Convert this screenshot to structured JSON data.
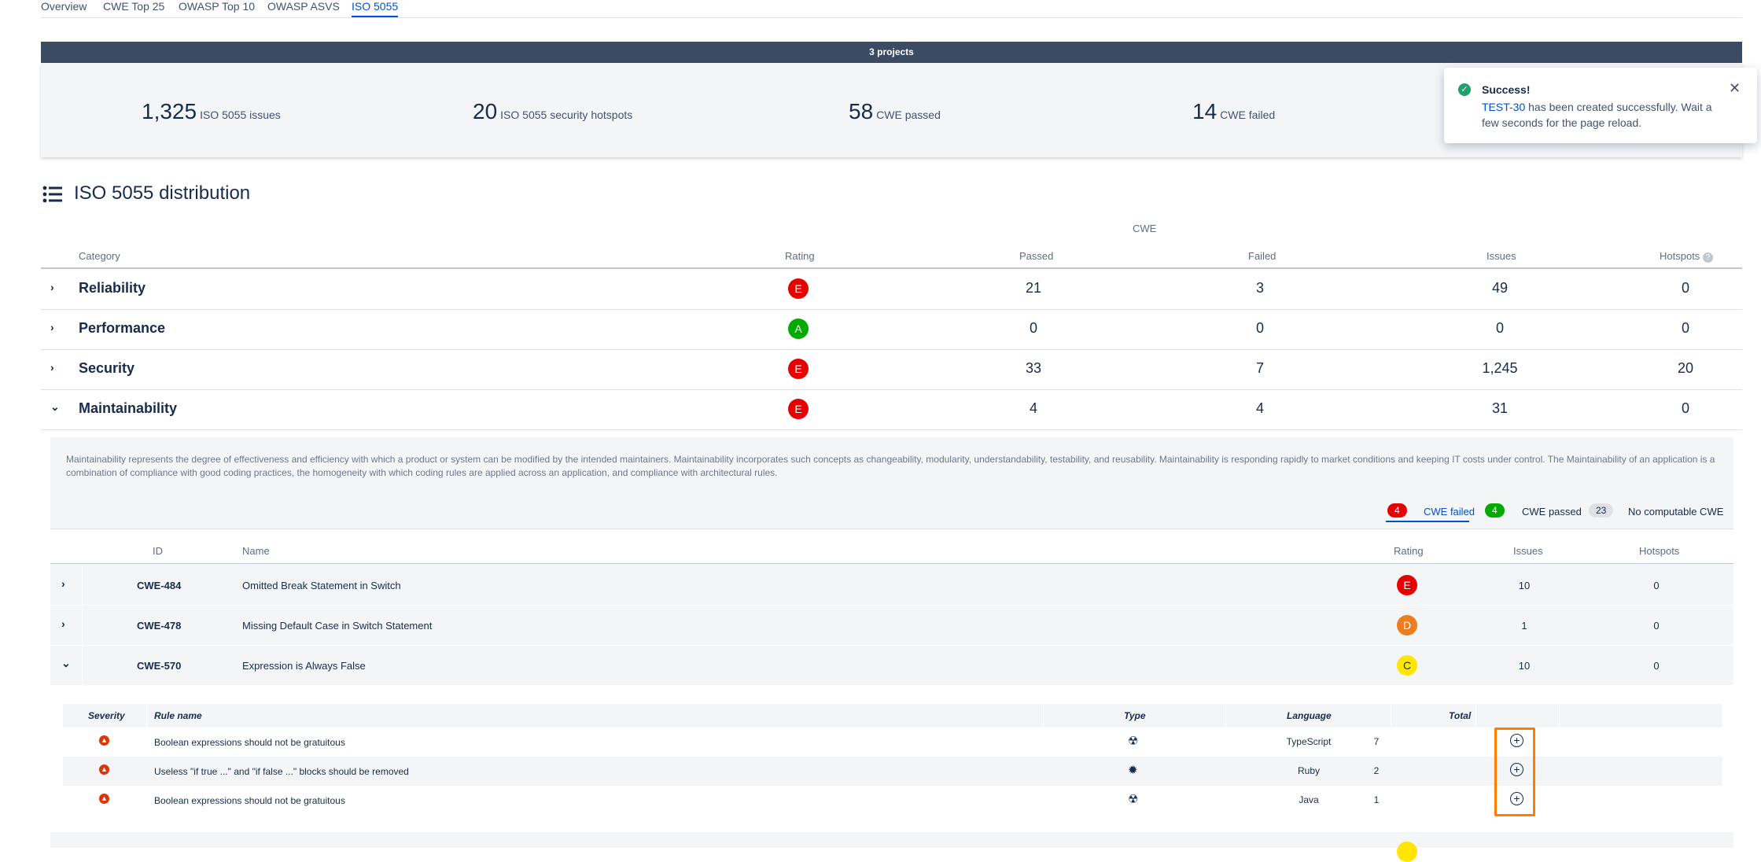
{
  "tabs": [
    "Overview",
    "CWE Top 25",
    "OWASP Top 10",
    "OWASP ASVS",
    "ISO 5055"
  ],
  "active_tab": "ISO 5055",
  "summary": {
    "projects_label": "3 projects",
    "stats": [
      {
        "value": "1,325",
        "label": "ISO 5055 issues"
      },
      {
        "value": "20",
        "label": "ISO 5055 security hotspots"
      },
      {
        "value": "58",
        "label": "CWE passed"
      },
      {
        "value": "14",
        "label": "CWE failed"
      }
    ]
  },
  "toast": {
    "title": "Success!",
    "link": "TEST-30",
    "message": " has been created successfully. Wait a few seconds for the page reload."
  },
  "section": {
    "title": "ISO 5055 distribution",
    "group_header": "CWE",
    "columns": [
      "Category",
      "Rating",
      "Passed",
      "Failed",
      "Issues",
      "Hotspots"
    ]
  },
  "categories": [
    {
      "name": "Reliability",
      "rating": "E",
      "passed": "21",
      "failed": "3",
      "issues": "49",
      "hotspots": "0",
      "expanded": false
    },
    {
      "name": "Performance",
      "rating": "A",
      "passed": "0",
      "failed": "0",
      "issues": "0",
      "hotspots": "0",
      "expanded": false
    },
    {
      "name": "Security",
      "rating": "E",
      "passed": "33",
      "failed": "7",
      "issues": "1,245",
      "hotspots": "20",
      "expanded": false
    },
    {
      "name": "Maintainability",
      "rating": "E",
      "passed": "4",
      "failed": "4",
      "issues": "31",
      "hotspots": "0",
      "expanded": true
    }
  ],
  "maintainability": {
    "description": "Maintainability represents the degree of effectiveness and efficiency with which a product or system can be modified by the intended maintainers. Maintainability incorporates such concepts as changeability, modularity, understandability, testability, and reusability. Maintainability is responding rapidly to market conditions and keeping IT costs under control. The Maintainability of an application is a combination of compliance with good coding practices, the homogeneity with which coding rules are applied across an application, and compliance with architectural rules.",
    "filters": [
      {
        "count": "4",
        "label": "CWE failed",
        "active": true
      },
      {
        "count": "4",
        "label": "CWE passed",
        "active": false
      },
      {
        "count": "23",
        "label": "No computable CWE",
        "active": false
      }
    ],
    "columns": [
      "ID",
      "Name",
      "Rating",
      "Issues",
      "Hotspots"
    ],
    "cwes": [
      {
        "id": "CWE-484",
        "name": "Omitted Break Statement in Switch",
        "rating": "E",
        "issues": "10",
        "hotspots": "0",
        "expanded": false
      },
      {
        "id": "CWE-478",
        "name": "Missing Default Case in Switch Statement",
        "rating": "D",
        "issues": "1",
        "hotspots": "0",
        "expanded": false
      },
      {
        "id": "CWE-570",
        "name": "Expression is Always False",
        "rating": "C",
        "issues": "10",
        "hotspots": "0",
        "expanded": true
      }
    ],
    "rule_columns": [
      "Severity",
      "Rule name",
      "Type",
      "Language",
      "Total"
    ],
    "rules": [
      {
        "name": "Boolean expressions should not be gratuitous",
        "type": "code-smell-icon",
        "language": "TypeScript",
        "total": "7"
      },
      {
        "name": "Useless \"if true ...\" and \"if false ...\" blocks should be removed",
        "type": "bug-icon",
        "language": "Ruby",
        "total": "2"
      },
      {
        "name": "Boolean expressions should not be gratuitous",
        "type": "code-smell-icon",
        "language": "Java",
        "total": "1"
      }
    ]
  },
  "colors": {
    "rating_E": "#e60000",
    "rating_A": "#00aa00",
    "rating_D": "#ed7d20",
    "rating_C": "#ffe500",
    "highlight": "#ff7d00",
    "accent": "#0052cc"
  }
}
